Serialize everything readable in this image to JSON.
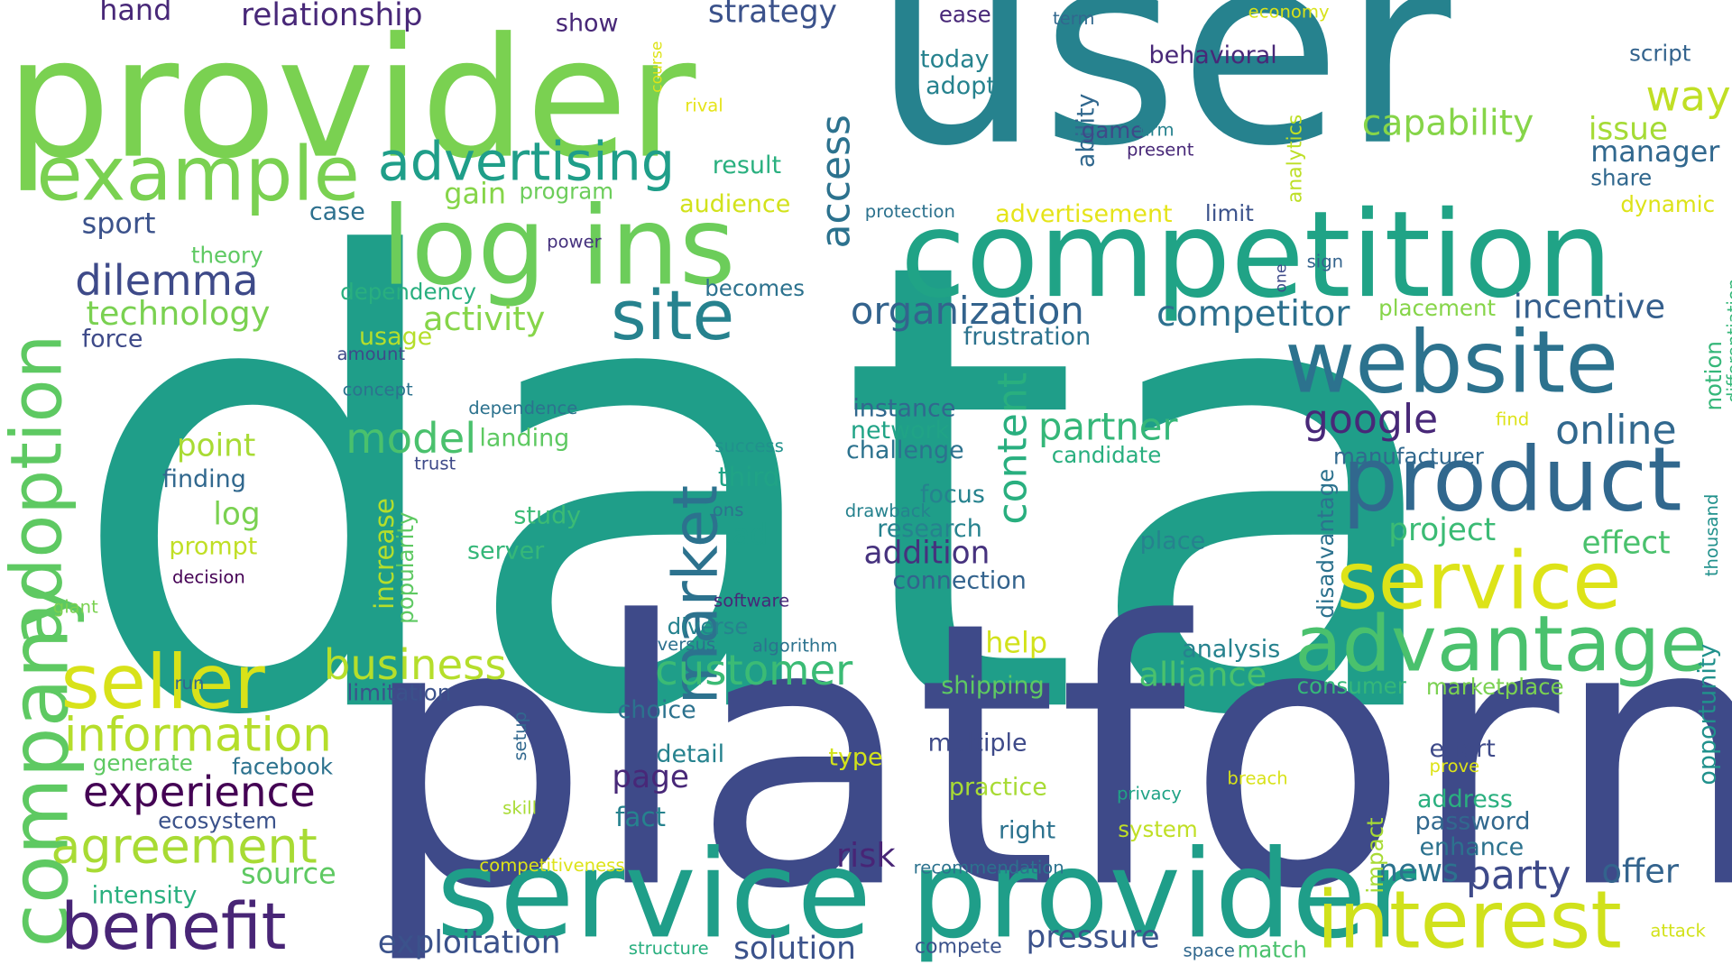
{
  "words": [
    {
      "text": "data",
      "color": "#1f9e89"
    },
    {
      "text": "user",
      "color": "#26828e"
    },
    {
      "text": "platform",
      "color": "#3e4a89"
    },
    {
      "text": "provider",
      "color": "#7ad151"
    },
    {
      "text": "service provider",
      "color": "#1f9e89"
    },
    {
      "text": "competition",
      "color": "#20a386"
    },
    {
      "text": "log ins",
      "color": "#6ccd5a"
    },
    {
      "text": "website",
      "color": "#2c728e"
    },
    {
      "text": "product",
      "color": "#31688e"
    },
    {
      "text": "service",
      "color": "#dde318"
    },
    {
      "text": "advantage",
      "color": "#4ac16d"
    },
    {
      "text": "interest",
      "color": "#d0e11c"
    },
    {
      "text": "example",
      "color": "#7ad151"
    },
    {
      "text": "company",
      "color": "#5ec962"
    },
    {
      "text": "adoption",
      "color": "#5ec962"
    },
    {
      "text": "seller",
      "color": "#d8e219"
    },
    {
      "text": "benefit",
      "color": "#482576"
    },
    {
      "text": "market",
      "color": "#2c728e"
    },
    {
      "text": "site",
      "color": "#26828e"
    },
    {
      "text": "advertising",
      "color": "#1f9e89"
    },
    {
      "text": "information",
      "color": "#b5de2b"
    },
    {
      "text": "agreement",
      "color": "#a8db34"
    },
    {
      "text": "experience",
      "color": "#440154"
    },
    {
      "text": "customer",
      "color": "#3bbb75"
    },
    {
      "text": "business",
      "color": "#b5de2b"
    },
    {
      "text": "dilemma",
      "color": "#3e4a89"
    },
    {
      "text": "organization",
      "color": "#33638d"
    },
    {
      "text": "competitor",
      "color": "#2d708e"
    },
    {
      "text": "access",
      "color": "#2c728e"
    },
    {
      "text": "google",
      "color": "#482878"
    },
    {
      "text": "online",
      "color": "#31688e"
    },
    {
      "text": "partner",
      "color": "#35b779"
    },
    {
      "text": "content",
      "color": "#29af7f"
    },
    {
      "text": "model",
      "color": "#4ac16d"
    },
    {
      "text": "technology",
      "color": "#7ad151"
    },
    {
      "text": "activity",
      "color": "#86d549"
    },
    {
      "text": "relationship",
      "color": "#482878"
    },
    {
      "text": "strategy",
      "color": "#3b528b"
    },
    {
      "text": "capability",
      "color": "#86d549"
    },
    {
      "text": "way",
      "color": "#c0df25"
    },
    {
      "text": "issue",
      "color": "#a5db36"
    },
    {
      "text": "manager",
      "color": "#31688e"
    },
    {
      "text": "incentive",
      "color": "#355f8d"
    },
    {
      "text": "party",
      "color": "#3e4a89"
    },
    {
      "text": "offer",
      "color": "#33638d"
    },
    {
      "text": "pressure",
      "color": "#3b528b"
    },
    {
      "text": "exploitation",
      "color": "#3b528b"
    },
    {
      "text": "solution",
      "color": "#3b528b"
    },
    {
      "text": "source",
      "color": "#5ec962"
    },
    {
      "text": "alliance",
      "color": "#4ac16d"
    },
    {
      "text": "addition",
      "color": "#46327e"
    },
    {
      "text": "project",
      "color": "#3bbb75"
    },
    {
      "text": "effect",
      "color": "#4ac16d"
    },
    {
      "text": "news",
      "color": "#2c728e"
    },
    {
      "text": "risk",
      "color": "#482576"
    },
    {
      "text": "page",
      "color": "#482878"
    },
    {
      "text": "fact",
      "color": "#26828e"
    },
    {
      "text": "increase",
      "color": "#b5de2b"
    },
    {
      "text": "popularity",
      "color": "#5ec962"
    },
    {
      "text": "point",
      "color": "#a8db34"
    },
    {
      "text": "log",
      "color": "#7ad151"
    },
    {
      "text": "ad",
      "color": "#1f9e89"
    },
    {
      "text": "third",
      "color": "#20a386"
    },
    {
      "text": "gain",
      "color": "#86d549"
    },
    {
      "text": "sport",
      "color": "#3b528b"
    },
    {
      "text": "hand",
      "color": "#482878"
    },
    {
      "text": "show",
      "color": "#482878"
    },
    {
      "text": "ease",
      "color": "#482878"
    },
    {
      "text": "term",
      "color": "#31688e"
    },
    {
      "text": "economy",
      "color": "#d8e219"
    },
    {
      "text": "script",
      "color": "#33638d"
    },
    {
      "text": "behavioral",
      "color": "#482878"
    },
    {
      "text": "today",
      "color": "#26828e"
    },
    {
      "text": "adopt",
      "color": "#26828e"
    },
    {
      "text": "ability",
      "color": "#31688e"
    },
    {
      "text": "game",
      "color": "#3e4a89"
    },
    {
      "text": "firm",
      "color": "#26828e"
    },
    {
      "text": "present",
      "color": "#482878"
    },
    {
      "text": "analytics",
      "color": "#bddf26"
    },
    {
      "text": "share",
      "color": "#31688e"
    },
    {
      "text": "dynamic",
      "color": "#dde318"
    },
    {
      "text": "limit",
      "color": "#3b528b"
    },
    {
      "text": "advertisement",
      "color": "#e5e419"
    },
    {
      "text": "protection",
      "color": "#2c728e"
    },
    {
      "text": "audience",
      "color": "#d2e21b"
    },
    {
      "text": "result",
      "color": "#2ab07f"
    },
    {
      "text": "program",
      "color": "#6ccd5a"
    },
    {
      "text": "course",
      "color": "#dde318"
    },
    {
      "text": "rival",
      "color": "#e5e419"
    },
    {
      "text": "case",
      "color": "#2d708e"
    },
    {
      "text": "theory",
      "color": "#5ec962"
    },
    {
      "text": "power",
      "color": "#46327e"
    },
    {
      "text": "dependency",
      "color": "#29af7f"
    },
    {
      "text": "becomes",
      "color": "#2c728e"
    },
    {
      "text": "one",
      "color": "#3e4a89"
    },
    {
      "text": "sign",
      "color": "#33638d"
    },
    {
      "text": "placement",
      "color": "#86d549"
    },
    {
      "text": "notion",
      "color": "#35b779"
    },
    {
      "text": "differentiation",
      "color": "#35b779"
    },
    {
      "text": "force",
      "color": "#3e4a89"
    },
    {
      "text": "usage",
      "color": "#b5de2b"
    },
    {
      "text": "amount",
      "color": "#3e4a89"
    },
    {
      "text": "frustration",
      "color": "#2c728e"
    },
    {
      "text": "concept",
      "color": "#2c728e"
    },
    {
      "text": "dependence",
      "color": "#2c728e"
    },
    {
      "text": "instance",
      "color": "#31688e"
    },
    {
      "text": "network",
      "color": "#20a386"
    },
    {
      "text": "challenge",
      "color": "#2c728e"
    },
    {
      "text": "landing",
      "color": "#5ec962"
    },
    {
      "text": "candidate",
      "color": "#29af7f"
    },
    {
      "text": "find",
      "color": "#dde318"
    },
    {
      "text": "success",
      "color": "#21918c"
    },
    {
      "text": "trust",
      "color": "#3e4a89"
    },
    {
      "text": "finding",
      "color": "#31688e"
    },
    {
      "text": "manufacturer",
      "color": "#31688e"
    },
    {
      "text": "disadvantage",
      "color": "#2c728e"
    },
    {
      "text": "focus",
      "color": "#26828e"
    },
    {
      "text": "research",
      "color": "#26828e"
    },
    {
      "text": "drawback",
      "color": "#26828e"
    },
    {
      "text": "ons",
      "color": "#2c728e"
    },
    {
      "text": "study",
      "color": "#3bbb75"
    },
    {
      "text": "prompt",
      "color": "#c0df25"
    },
    {
      "text": "server",
      "color": "#35b779"
    },
    {
      "text": "place",
      "color": "#26828e"
    },
    {
      "text": "thousand",
      "color": "#21918c"
    },
    {
      "text": "connection",
      "color": "#33638d"
    },
    {
      "text": "decision",
      "color": "#440154"
    },
    {
      "text": "giant",
      "color": "#7ad151"
    },
    {
      "text": "software",
      "color": "#482878"
    },
    {
      "text": "diverse",
      "color": "#26828e"
    },
    {
      "text": "opportunity",
      "color": "#21918c"
    },
    {
      "text": "help",
      "color": "#d2e21b"
    },
    {
      "text": "versus",
      "color": "#2d708e"
    },
    {
      "text": "algorithm",
      "color": "#2c728e"
    },
    {
      "text": "analysis",
      "color": "#26828e"
    },
    {
      "text": "consumer",
      "color": "#35b779"
    },
    {
      "text": "marketplace",
      "color": "#7ad151"
    },
    {
      "text": "run",
      "color": "#31688e"
    },
    {
      "text": "limitation",
      "color": "#3b528b"
    },
    {
      "text": "setup",
      "color": "#31688e"
    },
    {
      "text": "choice",
      "color": "#2c728e"
    },
    {
      "text": "shipping",
      "color": "#5ec962"
    },
    {
      "text": "multiple",
      "color": "#3e4a89"
    },
    {
      "text": "detail",
      "color": "#26828e"
    },
    {
      "text": "type",
      "color": "#d2e21b"
    },
    {
      "text": "effort",
      "color": "#3e4a89"
    },
    {
      "text": "prove",
      "color": "#dde318"
    },
    {
      "text": "generate",
      "color": "#5ec962"
    },
    {
      "text": "facebook",
      "color": "#2c728e"
    },
    {
      "text": "breach",
      "color": "#d8e219"
    },
    {
      "text": "practice",
      "color": "#a8db34"
    },
    {
      "text": "privacy",
      "color": "#20a386"
    },
    {
      "text": "address",
      "color": "#2ab07f"
    },
    {
      "text": "password",
      "color": "#31688e"
    },
    {
      "text": "ecosystem",
      "color": "#3b528b"
    },
    {
      "text": "skill",
      "color": "#a8db34"
    },
    {
      "text": "right",
      "color": "#2c728e"
    },
    {
      "text": "system",
      "color": "#c0df25"
    },
    {
      "text": "enhance",
      "color": "#2c728e"
    },
    {
      "text": "impact",
      "color": "#a8db34"
    },
    {
      "text": "intensity",
      "color": "#2ab07f"
    },
    {
      "text": "competitiveness",
      "color": "#dde318"
    },
    {
      "text": "recommendation",
      "color": "#2c728e"
    },
    {
      "text": "structure",
      "color": "#29af7f"
    },
    {
      "text": "compete",
      "color": "#3b528b"
    },
    {
      "text": "space",
      "color": "#31688e"
    },
    {
      "text": "match",
      "color": "#4ac16d"
    },
    {
      "text": "attack",
      "color": "#d2e21b"
    }
  ]
}
